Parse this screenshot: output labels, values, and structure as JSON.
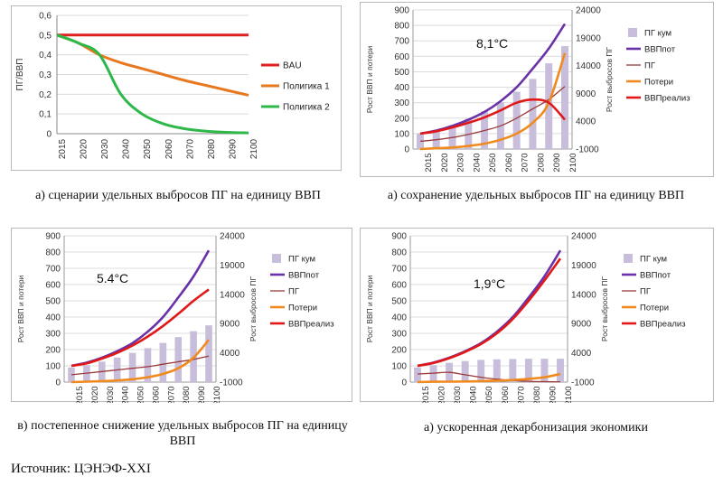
{
  "captions": {
    "a": "а) сценарии удельных выбросов ПГ на единицу ВВП",
    "b": "а) сохранение удельных выбросов ПГ на единицу ВВП",
    "c": "в) постепенное снижение удельных выбросов ПГ на единицу ВВП",
    "d": "а) ускоренная декарбонизация экономики"
  },
  "source": "Источник: ЦЭНЭФ-XXI",
  "chart_data": [
    {
      "type": "line",
      "ylabel": "ПГ/ВВП",
      "ylim": [
        0,
        0.6
      ],
      "yticks": [
        "0",
        "0,1",
        "0,2",
        "0,3",
        "0,4",
        "0,5",
        "0,6"
      ],
      "x": [
        "2015",
        "2020",
        "2030",
        "2040",
        "2050",
        "2060",
        "2070",
        "2080",
        "2090",
        "2100"
      ],
      "grid": true,
      "legend": "right",
      "series": [
        {
          "name": "BAU",
          "color": "#e02020",
          "values": [
            0.5,
            0.5,
            0.5,
            0.5,
            0.5,
            0.5,
            0.5,
            0.5,
            0.5,
            0.5
          ]
        },
        {
          "name": "Полигика 1",
          "color": "#e8781e",
          "values": [
            0.5,
            0.46,
            0.4,
            0.36,
            0.33,
            0.3,
            0.27,
            0.245,
            0.22,
            0.195
          ]
        },
        {
          "name": "Полигика 2",
          "color": "#2eb84a",
          "values": [
            0.5,
            0.46,
            0.4,
            0.2,
            0.1,
            0.05,
            0.025,
            0.013,
            0.007,
            0.004
          ]
        }
      ]
    },
    {
      "type": "bar+line",
      "annotation": "8,1°С",
      "ylabel": "Рост ВВП и потери",
      "y2label": "Рост выбросов ПГ",
      "ylim": [
        0,
        900
      ],
      "y2lim": [
        -1000,
        24000
      ],
      "yticks": [
        "0",
        "100",
        "200",
        "300",
        "400",
        "500",
        "600",
        "700",
        "800",
        "900"
      ],
      "y2ticks": [
        "-1000",
        "4000",
        "9000",
        "14000",
        "19000",
        "24000"
      ],
      "x": [
        "2015",
        "2020",
        "2030",
        "2040",
        "2050",
        "2060",
        "2070",
        "2080",
        "2090",
        "2100"
      ],
      "legend": "right",
      "bars": {
        "name": "ПГ кум",
        "color": "#c8bedb",
        "axis": "right",
        "values": [
          1800,
          2400,
          3300,
          4400,
          5800,
          7400,
          9300,
          11600,
          14400,
          17500
        ]
      },
      "series": [
        {
          "name": "ВВПпот",
          "color": "#6a32a8",
          "values": [
            100,
            120,
            150,
            190,
            240,
            310,
            400,
            520,
            650,
            810
          ]
        },
        {
          "name": "ПГ",
          "color": "#9b3a3a",
          "values": [
            50,
            60,
            75,
            95,
            120,
            150,
            200,
            260,
            320,
            405
          ]
        },
        {
          "name": "Потери",
          "color": "#f08a1e",
          "values": [
            0,
            5,
            10,
            20,
            35,
            60,
            100,
            170,
            300,
            620
          ]
        },
        {
          "name": "ВВПреализ",
          "color": "#e01818",
          "values": [
            100,
            115,
            140,
            170,
            205,
            250,
            300,
            320,
            300,
            190
          ]
        }
      ]
    },
    {
      "type": "bar+line",
      "annotation": "5.4°С",
      "ylabel": "Рост ВВП и потери",
      "y2label": "Рост выбросов ПГ",
      "ylim": [
        0,
        900
      ],
      "y2lim": [
        -1000,
        24000
      ],
      "yticks": [
        "0",
        "100",
        "200",
        "300",
        "400",
        "500",
        "600",
        "700",
        "800",
        "900"
      ],
      "y2ticks": [
        "-1000",
        "4000",
        "9000",
        "14000",
        "19000",
        "24000"
      ],
      "x": [
        "2015",
        "2020",
        "2030",
        "2040",
        "2050",
        "2060",
        "2070",
        "2080",
        "2090",
        "2100"
      ],
      "legend": "right",
      "bars": {
        "name": "ПГ кум",
        "color": "#c8bedb",
        "axis": "right",
        "values": [
          1500,
          1900,
          2500,
          3200,
          4000,
          4800,
          5700,
          6700,
          7700,
          8700
        ]
      },
      "series": [
        {
          "name": "ВВПпот",
          "color": "#6a32a8",
          "values": [
            100,
            120,
            150,
            190,
            240,
            310,
            400,
            520,
            650,
            810
          ]
        },
        {
          "name": "ПГ",
          "color": "#9b3a3a",
          "values": [
            45,
            55,
            65,
            75,
            85,
            95,
            110,
            125,
            140,
            160
          ]
        },
        {
          "name": "Потери",
          "color": "#f08a1e",
          "values": [
            0,
            3,
            6,
            10,
            18,
            30,
            50,
            85,
            150,
            260
          ]
        },
        {
          "name": "ВВПреализ",
          "color": "#e01818",
          "values": [
            100,
            115,
            145,
            180,
            225,
            280,
            345,
            420,
            500,
            570
          ]
        }
      ]
    },
    {
      "type": "bar+line",
      "annotation": "1,9°С",
      "ylabel": "Рост ВВП и потери",
      "y2label": "Рост выбросов ПГ",
      "ylim": [
        0,
        900
      ],
      "y2lim": [
        -1000,
        24000
      ],
      "yticks": [
        "0",
        "100",
        "200",
        "300",
        "400",
        "500",
        "600",
        "700",
        "800",
        "900"
      ],
      "y2ticks": [
        "-1000",
        "4000",
        "9000",
        "14000",
        "19000",
        "24000"
      ],
      "x": [
        "2015",
        "2020",
        "2030",
        "2040",
        "2050",
        "2060",
        "2070",
        "2080",
        "2090",
        "2100"
      ],
      "legend": "right",
      "bars": {
        "name": "ПГ кум",
        "color": "#c8bedb",
        "axis": "right",
        "values": [
          1500,
          1900,
          2300,
          2600,
          2800,
          2900,
          2950,
          3000,
          3000,
          3000
        ]
      },
      "series": [
        {
          "name": "ВВПпот",
          "color": "#6a32a8",
          "values": [
            100,
            120,
            150,
            190,
            240,
            310,
            400,
            520,
            650,
            810
          ]
        },
        {
          "name": "ПГ",
          "color": "#9b3a3a",
          "values": [
            50,
            55,
            60,
            45,
            30,
            18,
            10,
            5,
            3,
            2
          ]
        },
        {
          "name": "Потери",
          "color": "#f08a1e",
          "values": [
            0,
            2,
            3,
            4,
            6,
            9,
            13,
            20,
            30,
            50
          ]
        },
        {
          "name": "ВВПреализ",
          "color": "#e01818",
          "values": [
            100,
            118,
            147,
            186,
            234,
            300,
            388,
            500,
            625,
            760
          ]
        }
      ]
    }
  ]
}
